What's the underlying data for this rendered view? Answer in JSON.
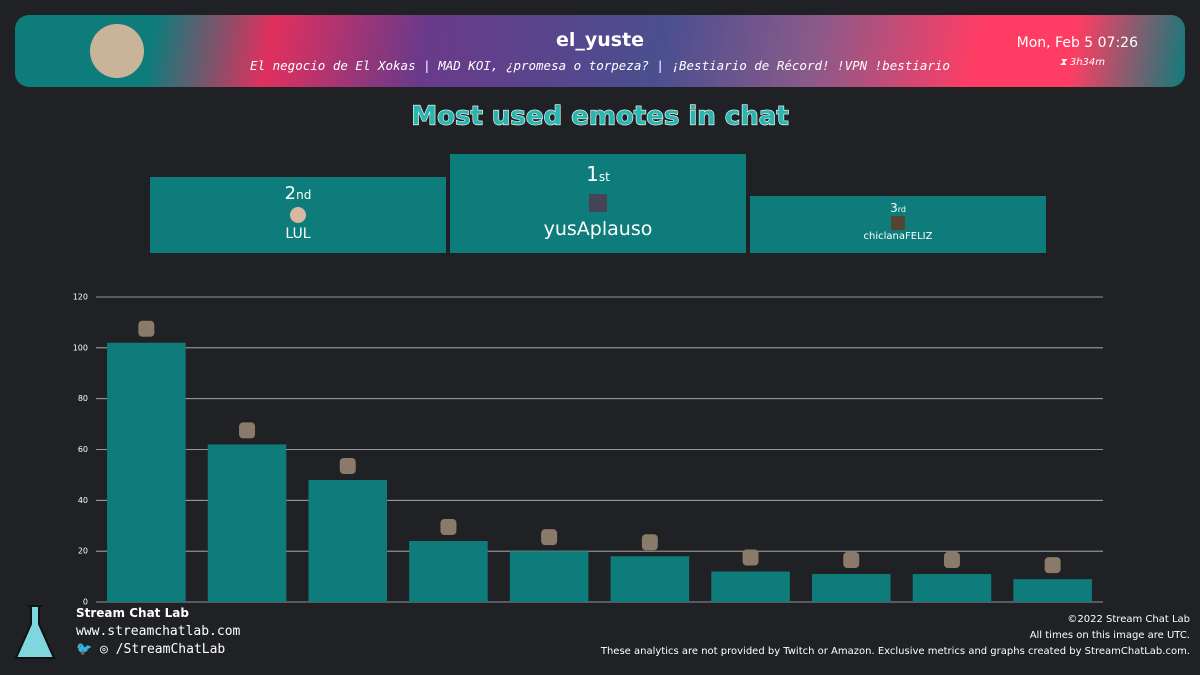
{
  "header": {
    "channel": "el_yuste",
    "stream_title": "El negocio de El Xokas | MAD KOI, ¿promesa o torpeza? | ¡Bestiario de Récord! !VPN !bestiario",
    "date": "Mon, Feb 5 07:26",
    "duration": "3h34m"
  },
  "podium": [
    {
      "rank": "2",
      "suffix": "nd",
      "name": "LUL"
    },
    {
      "rank": "1",
      "suffix": "st",
      "name": "yusAplauso"
    },
    {
      "rank": "3",
      "suffix": "rd",
      "name": "chiclanaFELIZ"
    }
  ],
  "footer": {
    "brand": "Stream Chat Lab",
    "url": "www.streamchatlab.com",
    "social": "/StreamChatLab",
    "copyright": "©2022 Stream Chat Lab",
    "timezone": "All times on this image are UTC.",
    "disclaimer": "These analytics are not provided by Twitch or Amazon. Exclusive metrics and graphs created by StreamChatLab.com."
  },
  "chart_data": {
    "type": "bar",
    "title": "Most used emotes in chat",
    "categories": [
      null,
      null,
      null,
      null,
      null,
      null,
      null,
      null,
      null,
      null
    ],
    "values": [
      102,
      62,
      48,
      24,
      20,
      18,
      12,
      11,
      11,
      9
    ],
    "color": "#0e7c7b",
    "ylim": [
      0,
      120
    ],
    "yticks": [
      0,
      20,
      40,
      60,
      80,
      100,
      120
    ],
    "grid": true
  }
}
